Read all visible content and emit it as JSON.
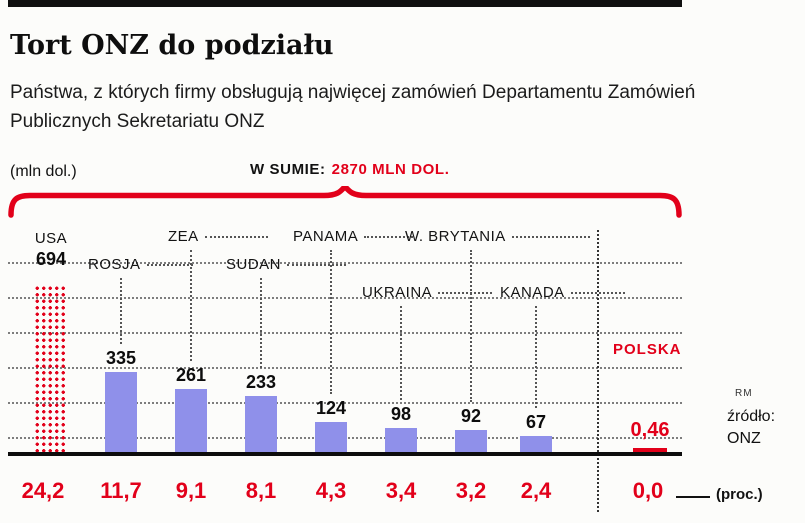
{
  "header": {
    "title": "Tort ONZ do podziału",
    "subtitle": "Państwa, z których firmy obsługują najwięcej zamówień Departamentu Zamówień Publicznych Sekretariatu ONZ"
  },
  "chart": {
    "unit_label": "(mln dol.)",
    "total_prefix": "W SUMIE:",
    "total_value": "2870 MLN DOL.",
    "percent_label": "(proc.)",
    "credit": "RM",
    "source_label": "źródło:",
    "source_name": "ONZ",
    "countries": [
      {
        "name": "USA",
        "value": "694",
        "percent": "24,2"
      },
      {
        "name": "ROSJA",
        "value": "335",
        "percent": "11,7"
      },
      {
        "name": "ZEA",
        "value": "261",
        "percent": "9,1"
      },
      {
        "name": "SUDAN",
        "value": "233",
        "percent": "8,1"
      },
      {
        "name": "PANAMA",
        "value": "124",
        "percent": "4,3"
      },
      {
        "name": "UKRAINA",
        "value": "98",
        "percent": "3,4"
      },
      {
        "name": "W. BRYTANIA",
        "value": "92",
        "percent": "3,2"
      },
      {
        "name": "KANADA",
        "value": "67",
        "percent": "2,4"
      },
      {
        "name": "POLSKA",
        "value": "0,46",
        "percent": "0,0"
      }
    ]
  },
  "colors": {
    "accent_red": "#e2001a",
    "bar_purple": "#8f90ea"
  },
  "chart_data": {
    "type": "bar",
    "title": "Tort ONZ do podziału",
    "subtitle": "Państwa, z których firmy obsługują najwięcej zamówień Departamentu Zamówień Publicznych Sekretariatu ONZ",
    "unit": "mln dol.",
    "total": 2870,
    "total_label": "W SUMIE: 2870 MLN DOL.",
    "categories": [
      "USA",
      "ROSJA",
      "ZEA",
      "SUDAN",
      "PANAMA",
      "UKRAINA",
      "W. BRYTANIA",
      "KANADA",
      "POLSKA"
    ],
    "values": [
      694,
      335,
      261,
      233,
      124,
      98,
      92,
      67,
      0.46
    ],
    "percentages": [
      24.2,
      11.7,
      9.1,
      8.1,
      4.3,
      3.4,
      3.2,
      2.4,
      0.0
    ],
    "percent_unit": "proc.",
    "source": "ONZ",
    "grid": true,
    "legend": false
  }
}
